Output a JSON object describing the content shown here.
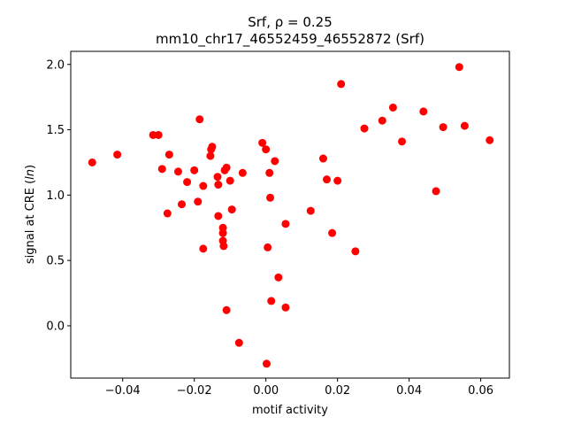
{
  "chart_data": {
    "type": "scatter",
    "title": "Srf, ρ = 0.25",
    "subtitle": "mm10_chr17_46552459_46552872 (Srf)",
    "xlabel": "motif activity",
    "ylabel": "signal at CRE (ln)",
    "xlim": [
      -0.0545,
      0.068
    ],
    "ylim": [
      -0.4,
      2.1
    ],
    "xticks": [
      -0.04,
      -0.02,
      0.0,
      0.02,
      0.04,
      0.06
    ],
    "xtick_labels": [
      "−0.04",
      "−0.02",
      "0.00",
      "0.02",
      "0.04",
      "0.06"
    ],
    "yticks": [
      0.0,
      0.5,
      1.0,
      1.5,
      2.0
    ],
    "ytick_labels": [
      "0.0",
      "0.5",
      "1.0",
      "1.5",
      "2.0"
    ],
    "grid": false,
    "marker_color": "#ff0000",
    "points": [
      {
        "x": -0.0485,
        "y": 1.25
      },
      {
        "x": -0.0415,
        "y": 1.31
      },
      {
        "x": -0.0315,
        "y": 1.46
      },
      {
        "x": -0.03,
        "y": 1.46
      },
      {
        "x": -0.029,
        "y": 1.2
      },
      {
        "x": -0.0275,
        "y": 0.86
      },
      {
        "x": -0.027,
        "y": 1.31
      },
      {
        "x": -0.0245,
        "y": 1.18
      },
      {
        "x": -0.0235,
        "y": 0.93
      },
      {
        "x": -0.022,
        "y": 1.1
      },
      {
        "x": -0.02,
        "y": 1.19
      },
      {
        "x": -0.019,
        "y": 0.95
      },
      {
        "x": -0.0185,
        "y": 1.58
      },
      {
        "x": -0.0175,
        "y": 1.07
      },
      {
        "x": -0.0175,
        "y": 0.59
      },
      {
        "x": -0.0155,
        "y": 1.3
      },
      {
        "x": -0.0153,
        "y": 1.35
      },
      {
        "x": -0.015,
        "y": 1.37
      },
      {
        "x": -0.0135,
        "y": 1.14
      },
      {
        "x": -0.0133,
        "y": 1.08
      },
      {
        "x": -0.0133,
        "y": 0.84
      },
      {
        "x": -0.012,
        "y": 0.75
      },
      {
        "x": -0.012,
        "y": 0.71
      },
      {
        "x": -0.012,
        "y": 0.65
      },
      {
        "x": -0.0118,
        "y": 0.61
      },
      {
        "x": -0.0115,
        "y": 1.19
      },
      {
        "x": -0.011,
        "y": 1.21
      },
      {
        "x": -0.011,
        "y": 0.12
      },
      {
        "x": -0.01,
        "y": 1.11
      },
      {
        "x": -0.0095,
        "y": 0.89
      },
      {
        "x": -0.0075,
        "y": -0.13
      },
      {
        "x": -0.0065,
        "y": 1.17
      },
      {
        "x": -0.001,
        "y": 1.4
      },
      {
        "x": 0.0,
        "y": 1.35
      },
      {
        "x": 0.0002,
        "y": -0.29
      },
      {
        "x": 0.0005,
        "y": 0.6
      },
      {
        "x": 0.001,
        "y": 1.17
      },
      {
        "x": 0.0012,
        "y": 0.98
      },
      {
        "x": 0.0015,
        "y": 0.19
      },
      {
        "x": 0.0025,
        "y": 1.26
      },
      {
        "x": 0.0035,
        "y": 0.37
      },
      {
        "x": 0.0055,
        "y": 0.78
      },
      {
        "x": 0.0055,
        "y": 0.14
      },
      {
        "x": 0.0125,
        "y": 0.88
      },
      {
        "x": 0.016,
        "y": 1.28
      },
      {
        "x": 0.017,
        "y": 1.12
      },
      {
        "x": 0.0185,
        "y": 0.71
      },
      {
        "x": 0.02,
        "y": 1.11
      },
      {
        "x": 0.021,
        "y": 1.85
      },
      {
        "x": 0.025,
        "y": 0.57
      },
      {
        "x": 0.0275,
        "y": 1.51
      },
      {
        "x": 0.0325,
        "y": 1.57
      },
      {
        "x": 0.0355,
        "y": 1.67
      },
      {
        "x": 0.038,
        "y": 1.41
      },
      {
        "x": 0.044,
        "y": 1.64
      },
      {
        "x": 0.0475,
        "y": 1.03
      },
      {
        "x": 0.0495,
        "y": 1.52
      },
      {
        "x": 0.054,
        "y": 1.98
      },
      {
        "x": 0.0555,
        "y": 1.53
      },
      {
        "x": 0.0625,
        "y": 1.42
      }
    ]
  }
}
